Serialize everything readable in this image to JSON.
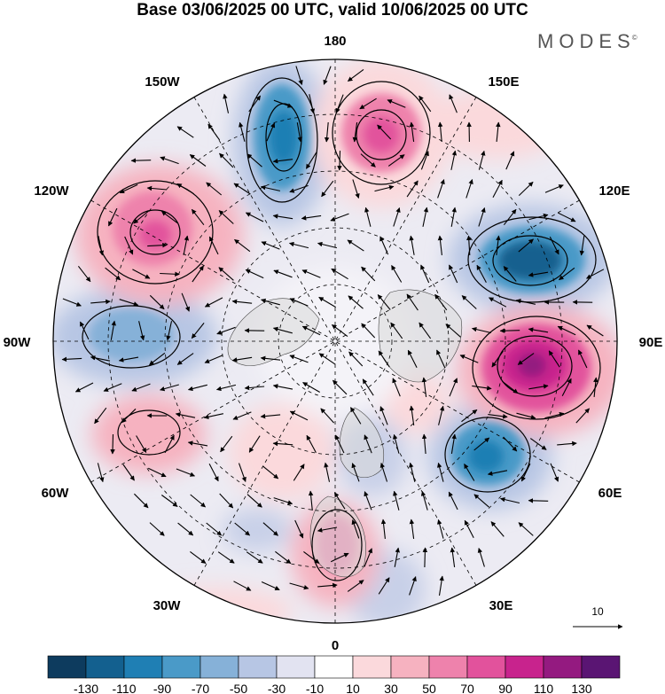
{
  "title": "Base 03/06/2025 00 UTC, valid 10/06/2025 00 UTC",
  "brand": {
    "name": "MODES",
    "mark": "©"
  },
  "longitude_labels": [
    {
      "id": "lon-180",
      "text": "180"
    },
    {
      "id": "lon-150e",
      "text": "150E"
    },
    {
      "id": "lon-120e",
      "text": "120E"
    },
    {
      "id": "lon-90e",
      "text": "90E"
    },
    {
      "id": "lon-60e",
      "text": "60E"
    },
    {
      "id": "lon-30e",
      "text": "30E"
    },
    {
      "id": "lon-0",
      "text": "0"
    },
    {
      "id": "lon-30w",
      "text": "30W"
    },
    {
      "id": "lon-60w",
      "text": "60W"
    },
    {
      "id": "lon-90w",
      "text": "90W"
    },
    {
      "id": "lon-120w",
      "text": "120W"
    },
    {
      "id": "lon-150w",
      "text": "150W"
    }
  ],
  "reference_vector": {
    "label": "10"
  },
  "colorbar": {
    "colors": [
      "#0d3b5e",
      "#13608f",
      "#1f7fb4",
      "#4a9ac8",
      "#86b1d8",
      "#b7c6e4",
      "#e2e3f1",
      "#ffffff",
      "#fbd9dc",
      "#f6b2c0",
      "#ee82ac",
      "#e2529c",
      "#c8238d",
      "#941a80",
      "#5a1573"
    ],
    "labels": [
      "-130",
      "-110",
      "-90",
      "-70",
      "-50",
      "-30",
      "-10",
      "10",
      "30",
      "50",
      "70",
      "90",
      "110",
      "130"
    ]
  },
  "colors": {
    "negative_strong": "#1f7fb4",
    "positive_strong": "#c8238d",
    "land": "#d9d9d9",
    "contour": "#000000"
  }
}
